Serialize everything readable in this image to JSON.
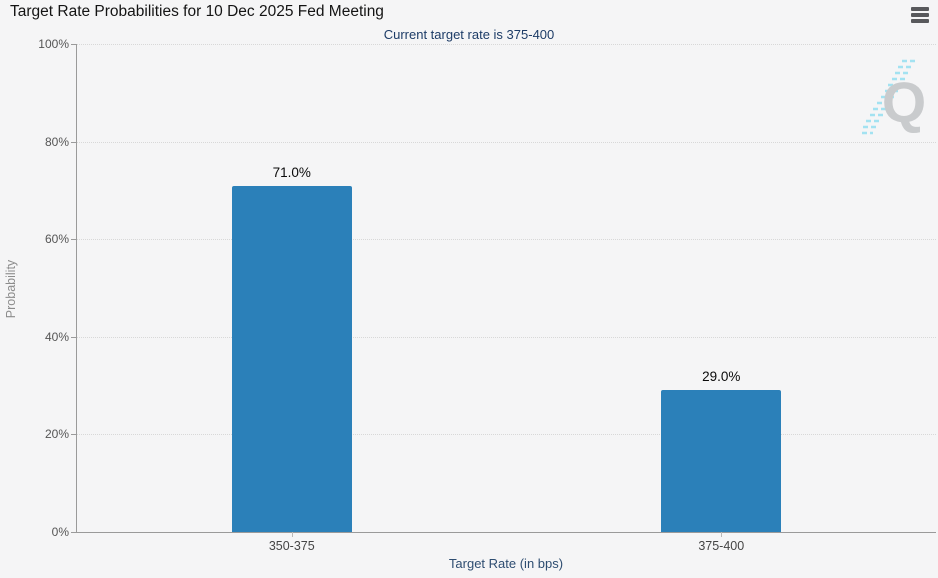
{
  "header": {
    "title": "Target Rate Probabilities for 10 Dec 2025 Fed Meeting",
    "menu_icon": "hamburger-menu-icon"
  },
  "subtitle": "Current target rate is 375-400",
  "chart_data": {
    "type": "bar",
    "title": "Target Rate Probabilities for 10 Dec 2025 Fed Meeting",
    "subtitle": "Current target rate is 375-400",
    "categories": [
      "350-375",
      "375-400"
    ],
    "values": [
      71.0,
      29.0
    ],
    "value_labels": [
      "71.0%",
      "29.0%"
    ],
    "xlabel": "Target Rate (in bps)",
    "ylabel": "Probability",
    "ylim": [
      0,
      100
    ],
    "yticks": [
      "0%",
      "20%",
      "40%",
      "60%",
      "80%",
      "100%"
    ],
    "grid": "horizontal dotted",
    "legend": "none",
    "bar_color": "#2b80b9"
  },
  "watermark": {
    "letter": "Q",
    "letter_color": "#c9cbcd",
    "dash_color": "#a3e2f1"
  },
  "colors": {
    "background": "#f5f5f6",
    "subtitle_text": "#1d3c67",
    "axis_line": "#9a9a9a",
    "bar": "#2b80b9"
  }
}
